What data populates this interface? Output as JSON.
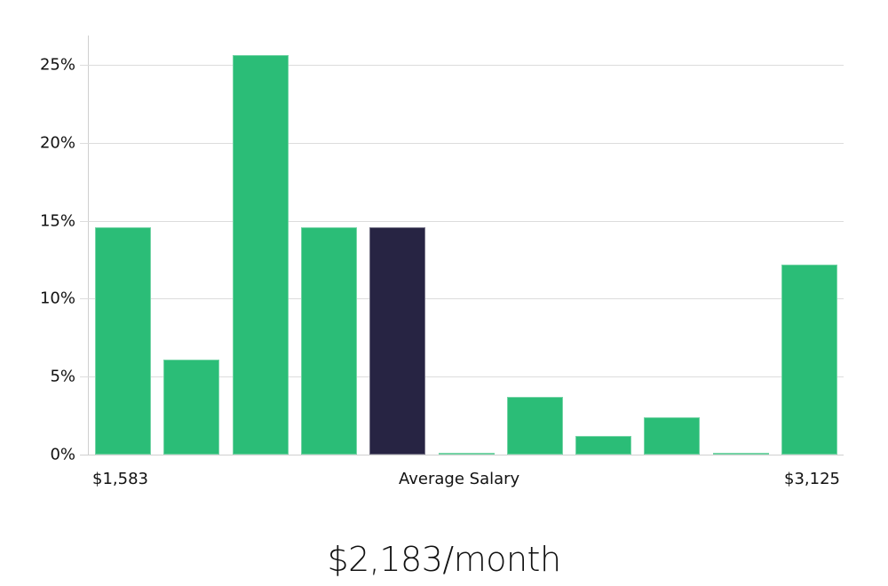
{
  "chart_data": {
    "type": "bar",
    "title": "",
    "xlabel": "Average Salary",
    "ylabel": "",
    "ylim": [
      0,
      27
    ],
    "yticks": [
      "0%",
      "5%",
      "10%",
      "15%",
      "20%",
      "25%"
    ],
    "ytick_values": [
      0,
      5,
      10,
      15,
      20,
      25
    ],
    "grid": true,
    "x_range_labels": {
      "min": "$1,583",
      "center": "Average Salary",
      "max": "$3,125"
    },
    "categories": [
      "bin1",
      "bin2",
      "bin3",
      "bin4",
      "bin5",
      "bin6",
      "bin7",
      "bin8",
      "bin9",
      "bin10",
      "bin11"
    ],
    "values": [
      14.6,
      6.1,
      25.6,
      14.6,
      14.6,
      0.1,
      3.7,
      1.2,
      2.4,
      0.1,
      12.2
    ],
    "highlight_index": 4,
    "colors": {
      "bar": "#2bbd77",
      "highlight": "#272443",
      "grid": "#dcdcdc",
      "axis": "#d0d0d0"
    },
    "legend": null
  },
  "labels": {
    "x_min": "$1,583",
    "x_center": "Average Salary",
    "x_max": "$3,125"
  },
  "summary": {
    "salary": "$2,183/month"
  }
}
